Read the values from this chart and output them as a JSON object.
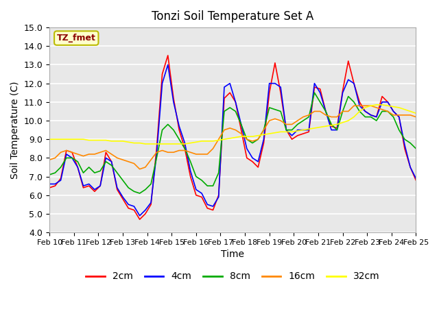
{
  "title": "Tonzi Soil Temperature Set A",
  "xlabel": "Time",
  "ylabel": "Soil Temperature (C)",
  "ylim": [
    4.0,
    15.0
  ],
  "yticks": [
    4.0,
    5.0,
    6.0,
    7.0,
    8.0,
    9.0,
    10.0,
    11.0,
    12.0,
    13.0,
    14.0,
    15.0
  ],
  "xtick_labels": [
    "Feb 10",
    "Feb 11",
    "Feb 12",
    "Feb 13",
    "Feb 14",
    "Feb 15",
    "Feb 16",
    "Feb 17",
    "Feb 18",
    "Feb 19",
    "Feb 20",
    "Feb 21",
    "Feb 22",
    "Feb 23",
    "Feb 24",
    "Feb 25"
  ],
  "bg_color": "#e8e8e8",
  "fig_bg_color": "#ffffff",
  "annotation_text": "TZ_fmet",
  "annotation_color": "#8b0000",
  "annotation_bg": "#ffffcc",
  "series": {
    "2cm": {
      "color": "#ff0000",
      "label": "2cm"
    },
    "4cm": {
      "color": "#0000ff",
      "label": "4cm"
    },
    "8cm": {
      "color": "#00aa00",
      "label": "8cm"
    },
    "16cm": {
      "color": "#ff8800",
      "label": "16cm"
    },
    "32cm": {
      "color": "#ffff00",
      "label": "32cm"
    }
  },
  "y_2cm": [
    6.4,
    6.5,
    6.9,
    8.4,
    8.3,
    7.5,
    6.4,
    6.5,
    6.2,
    6.5,
    8.3,
    7.8,
    6.3,
    5.8,
    5.3,
    5.2,
    4.7,
    5.0,
    5.5,
    8.5,
    12.5,
    13.5,
    11.2,
    9.5,
    8.5,
    7.0,
    6.0,
    5.9,
    5.3,
    5.2,
    6.0,
    11.2,
    11.5,
    11.0,
    9.5,
    8.0,
    7.8,
    7.5,
    8.8,
    11.5,
    13.1,
    11.5,
    9.5,
    9.0,
    9.2,
    9.3,
    9.4,
    11.8,
    11.7,
    10.5,
    9.7,
    9.6,
    11.6,
    13.2,
    12.0,
    11.0,
    10.5,
    10.3,
    10.2,
    11.3,
    11.0,
    10.5,
    10.2,
    8.5,
    7.5,
    6.8
  ],
  "y_4cm": [
    6.6,
    6.6,
    6.8,
    8.2,
    8.0,
    7.5,
    6.5,
    6.6,
    6.3,
    6.5,
    8.0,
    7.8,
    6.4,
    5.9,
    5.5,
    5.4,
    4.9,
    5.2,
    5.6,
    8.2,
    12.0,
    13.0,
    11.0,
    9.7,
    8.8,
    7.3,
    6.3,
    6.1,
    5.5,
    5.4,
    5.9,
    11.8,
    12.0,
    11.0,
    9.8,
    8.5,
    8.0,
    7.8,
    9.0,
    12.0,
    12.0,
    11.8,
    9.5,
    9.2,
    9.5,
    9.5,
    9.5,
    12.0,
    11.5,
    10.5,
    9.5,
    9.5,
    11.5,
    12.2,
    12.0,
    10.8,
    10.5,
    10.3,
    10.2,
    11.0,
    11.0,
    10.5,
    10.2,
    8.7,
    7.5,
    6.9
  ],
  "y_8cm": [
    7.1,
    7.2,
    7.5,
    8.0,
    8.0,
    7.8,
    7.2,
    7.5,
    7.2,
    7.3,
    7.8,
    7.6,
    7.2,
    6.8,
    6.4,
    6.2,
    6.1,
    6.3,
    6.6,
    8.0,
    9.5,
    9.8,
    9.5,
    9.0,
    8.5,
    7.8,
    7.0,
    6.8,
    6.5,
    6.5,
    7.2,
    10.5,
    10.7,
    10.5,
    9.8,
    9.0,
    8.8,
    9.0,
    9.5,
    10.7,
    10.6,
    10.5,
    9.5,
    9.5,
    9.8,
    10.0,
    10.2,
    11.5,
    11.0,
    10.5,
    9.8,
    9.5,
    10.5,
    11.3,
    11.0,
    10.5,
    10.2,
    10.2,
    10.0,
    10.5,
    10.5,
    10.2,
    9.5,
    9.0,
    8.8,
    8.5
  ],
  "y_16cm": [
    7.9,
    8.0,
    8.3,
    8.4,
    8.3,
    8.2,
    8.1,
    8.2,
    8.2,
    8.3,
    8.4,
    8.2,
    8.0,
    7.9,
    7.8,
    7.7,
    7.4,
    7.5,
    7.9,
    8.3,
    8.4,
    8.3,
    8.3,
    8.4,
    8.4,
    8.3,
    8.2,
    8.2,
    8.2,
    8.5,
    9.0,
    9.5,
    9.6,
    9.5,
    9.3,
    9.0,
    8.9,
    9.0,
    9.5,
    10.0,
    10.1,
    10.0,
    9.8,
    9.8,
    10.0,
    10.2,
    10.3,
    10.5,
    10.5,
    10.3,
    10.2,
    10.2,
    10.5,
    10.5,
    10.8,
    10.8,
    10.8,
    10.8,
    10.7,
    10.6,
    10.5,
    10.3,
    10.3,
    10.3,
    10.3,
    10.2
  ],
  "y_32cm": [
    9.0,
    9.0,
    9.0,
    9.0,
    9.0,
    9.0,
    9.0,
    8.95,
    8.95,
    8.95,
    8.95,
    8.9,
    8.9,
    8.9,
    8.85,
    8.8,
    8.8,
    8.75,
    8.75,
    8.75,
    8.75,
    8.75,
    8.75,
    8.75,
    8.75,
    8.8,
    8.85,
    8.9,
    8.9,
    8.9,
    8.95,
    9.0,
    9.05,
    9.1,
    9.15,
    9.15,
    9.15,
    9.2,
    9.25,
    9.3,
    9.35,
    9.4,
    9.4,
    9.4,
    9.45,
    9.5,
    9.55,
    9.6,
    9.65,
    9.7,
    9.75,
    9.8,
    9.9,
    10.0,
    10.2,
    10.5,
    10.7,
    10.8,
    10.85,
    10.85,
    10.8,
    10.75,
    10.7,
    10.6,
    10.5,
    10.4
  ]
}
